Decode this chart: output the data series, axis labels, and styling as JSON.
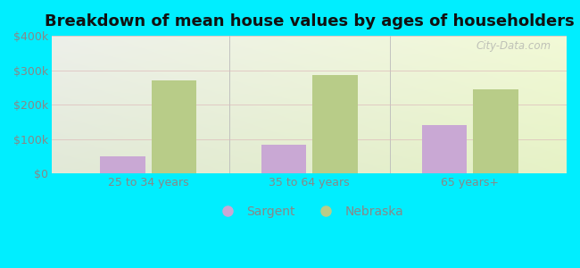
{
  "title": "Breakdown of mean house values by ages of householders",
  "categories": [
    "25 to 34 years",
    "35 to 64 years",
    "65 years+"
  ],
  "sargent_values": [
    50000,
    85000,
    140000
  ],
  "nebraska_values": [
    270000,
    287000,
    245000
  ],
  "ylim": [
    0,
    400000
  ],
  "yticks": [
    0,
    100000,
    200000,
    300000,
    400000
  ],
  "ytick_labels": [
    "$0",
    "$100k",
    "$200k",
    "$300k",
    "$400k"
  ],
  "sargent_color": "#c9a8d4",
  "nebraska_color": "#b8cc88",
  "background_color": "#00eeff",
  "bar_width": 0.28,
  "legend_labels": [
    "Sargent",
    "Nebraska"
  ],
  "watermark": "City-Data.com",
  "title_fontsize": 13,
  "tick_fontsize": 9,
  "legend_fontsize": 10,
  "grid_color": "#ddbbbb",
  "tick_color": "#888888"
}
